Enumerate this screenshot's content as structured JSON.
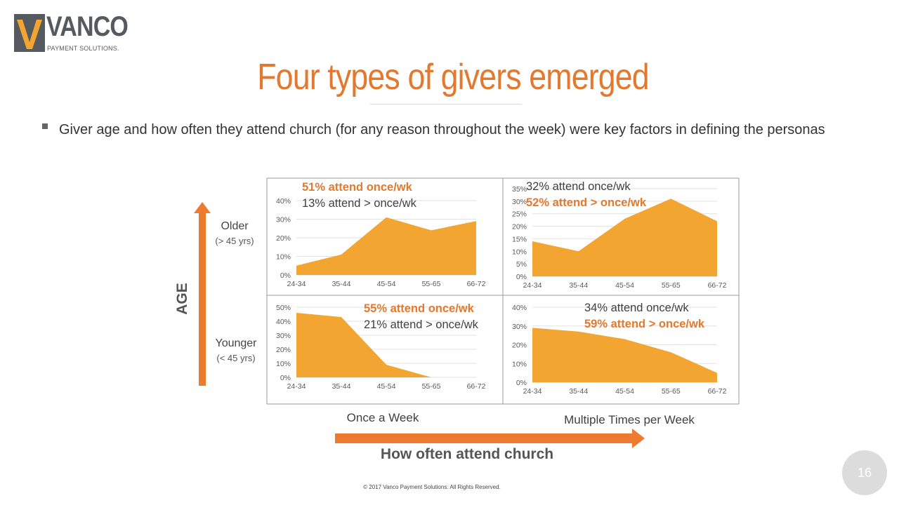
{
  "logo": {
    "brand": "VANCO",
    "tagline": "PAYMENT SOLUTIONS."
  },
  "title": "Four types of givers emerged",
  "bullet": "Giver age and how often they attend church (for any reason throughout the week) were key factors in defining the personas",
  "axes": {
    "y_title": "AGE",
    "older_label": "Older",
    "older_sub": "(> 45 yrs)",
    "younger_label": "Younger",
    "younger_sub": "(< 45 yrs)",
    "x_left_label": "Once a Week",
    "x_right_label": "Multiple Times per Week",
    "x_title": "How often attend church"
  },
  "colors": {
    "accent": "#e3792e",
    "area": "#f2a531",
    "arrow": "#ec7a2f"
  },
  "chart_data": [
    {
      "type": "area",
      "quadrant": "older-once-a-week",
      "categories": [
        "24-34",
        "35-44",
        "45-54",
        "55-65",
        "66-72"
      ],
      "values": [
        5,
        11,
        31,
        24,
        29
      ],
      "ylim": [
        0,
        40
      ],
      "yticks": [
        0,
        10,
        20,
        30,
        40
      ],
      "annotation_highlight": "51% attend once/wk",
      "annotation_normal": "13% attend > once/wk"
    },
    {
      "type": "area",
      "quadrant": "older-multiple-times",
      "categories": [
        "24-34",
        "35-44",
        "45-54",
        "55-65",
        "66-72"
      ],
      "values": [
        14,
        10,
        23,
        31,
        22
      ],
      "ylim": [
        0,
        35
      ],
      "yticks": [
        0,
        5,
        10,
        15,
        20,
        25,
        30,
        35
      ],
      "annotation_normal": "32% attend once/wk",
      "annotation_highlight": "52% attend > once/wk"
    },
    {
      "type": "area",
      "quadrant": "younger-once-a-week",
      "categories": [
        "24-34",
        "35-44",
        "45-54",
        "55-65",
        "66-72"
      ],
      "values": [
        46,
        43,
        9,
        0,
        0
      ],
      "ylim": [
        0,
        50
      ],
      "yticks": [
        0,
        10,
        20,
        30,
        40,
        50
      ],
      "annotation_highlight": "55% attend once/wk",
      "annotation_normal": "21% attend > once/wk"
    },
    {
      "type": "area",
      "quadrant": "younger-multiple-times",
      "categories": [
        "24-34",
        "35-44",
        "45-54",
        "55-65",
        "66-72"
      ],
      "values": [
        29,
        27,
        23,
        16,
        5
      ],
      "ylim": [
        0,
        40
      ],
      "yticks": [
        0,
        10,
        20,
        30,
        40
      ],
      "annotation_normal": "34% attend once/wk",
      "annotation_highlight": "59% attend > once/wk"
    }
  ],
  "page_number": "16",
  "copyright": "© 2017 Vanco Payment Solutions. All Rights Reserved."
}
